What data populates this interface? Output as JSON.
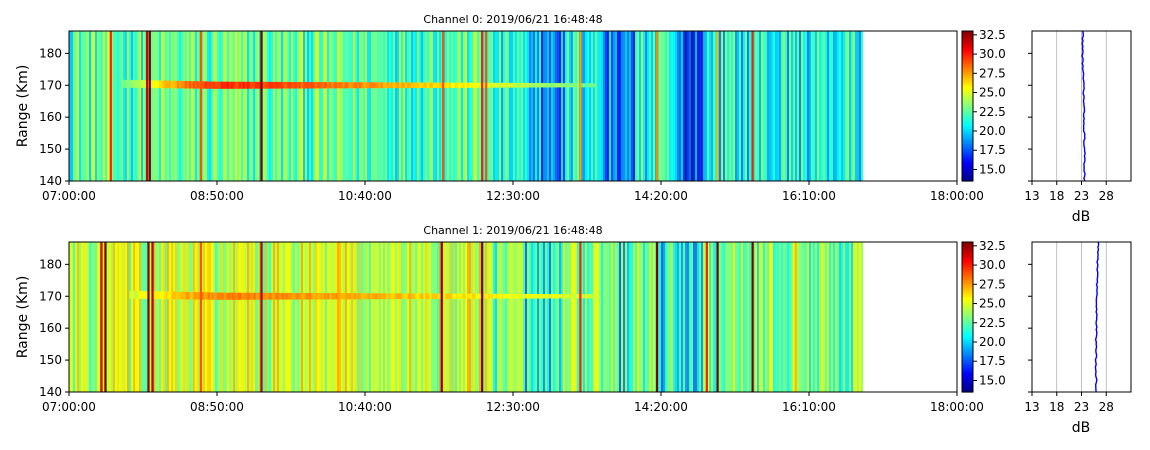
{
  "chart_data": [
    {
      "type": "heatmap",
      "title": "Channel 0: 2019/06/21 16:48:48",
      "ylabel": "Range (Km)",
      "xlim": [
        "07:00:00",
        "18:00:00"
      ],
      "ylim": [
        140,
        187
      ],
      "x_ticks": [
        "07:00:00",
        "08:50:00",
        "10:40:00",
        "12:30:00",
        "14:20:00",
        "16:10:00",
        "18:00:00"
      ],
      "y_ticks": [
        140,
        150,
        160,
        170,
        180
      ],
      "data_end": "16:50:00",
      "colorbar": {
        "colormap": "jet",
        "range": [
          13.5,
          33
        ],
        "ticks": [
          "15.0",
          "17.5",
          "20.0",
          "22.5",
          "25.0",
          "27.5",
          "30.0",
          "32.5"
        ]
      },
      "background_level": 22.5,
      "layer": {
        "range_km": 170,
        "start": "07:40:00",
        "end": "13:30:00",
        "peak_value": 30.5
      },
      "vertical_stripes": [
        {
          "time": "07:31:00",
          "value": 30
        },
        {
          "time": "07:58:00",
          "value": 31.5
        },
        {
          "time": "08:00:00",
          "value": 33
        },
        {
          "time": "08:38:00",
          "value": 29
        },
        {
          "time": "09:23:00",
          "value": 33
        },
        {
          "time": "11:38:00",
          "value": 29
        },
        {
          "time": "12:07:00",
          "value": 30
        },
        {
          "time": "12:10:00",
          "value": 29
        },
        {
          "time": "13:20:00",
          "value": 27.5
        },
        {
          "time": "14:17:00",
          "value": 28
        },
        {
          "time": "15:02:00",
          "value": 27
        },
        {
          "time": "15:28:00",
          "value": 30
        }
      ],
      "low_bands": [
        {
          "start": "12:36:00",
          "end": "13:10:00",
          "value": 17
        },
        {
          "start": "13:38:00",
          "end": "14:00:00",
          "value": 16.5
        },
        {
          "start": "14:30:00",
          "end": "14:52:00",
          "value": 16
        }
      ]
    },
    {
      "type": "line",
      "xlabel": "dB",
      "xlim": [
        13,
        33
      ],
      "x_ticks": [
        13,
        18,
        23,
        28
      ],
      "ylim": [
        140,
        187
      ],
      "grid": true,
      "series": [
        {
          "color": "#0000ff",
          "points": [
            [
              23.3,
              187
            ],
            [
              23.2,
              180
            ],
            [
              23.4,
              170
            ],
            [
              23.5,
              160
            ],
            [
              23.6,
              150
            ],
            [
              23.6,
              140
            ]
          ]
        }
      ]
    },
    {
      "type": "heatmap",
      "title": "Channel 1: 2019/06/21 16:48:48",
      "ylabel": "Range (Km)",
      "xlim": [
        "07:00:00",
        "18:00:00"
      ],
      "ylim": [
        140,
        187
      ],
      "x_ticks": [
        "07:00:00",
        "08:50:00",
        "10:40:00",
        "12:30:00",
        "14:20:00",
        "16:10:00",
        "18:00:00"
      ],
      "y_ticks": [
        140,
        150,
        160,
        170,
        180
      ],
      "data_end": "16:50:00",
      "colorbar": {
        "colormap": "jet",
        "range": [
          13.5,
          33
        ],
        "ticks": [
          "15.0",
          "17.5",
          "20.0",
          "22.5",
          "25.0",
          "27.5",
          "30.0",
          "32.5"
        ]
      },
      "background_level": 24.5,
      "layer": {
        "range_km": 170,
        "start": "07:45:00",
        "end": "13:30:00",
        "peak_value": 28.5
      },
      "vertical_stripes": [
        {
          "time": "07:24:00",
          "value": 31
        },
        {
          "time": "07:27:00",
          "value": 33
        },
        {
          "time": "07:59:00",
          "value": 33
        },
        {
          "time": "08:02:00",
          "value": 32
        },
        {
          "time": "08:38:00",
          "value": 29
        },
        {
          "time": "09:23:00",
          "value": 32
        },
        {
          "time": "11:37:00",
          "value": 33
        },
        {
          "time": "12:07:00",
          "value": 33
        },
        {
          "time": "13:20:00",
          "value": 30
        },
        {
          "time": "14:17:00",
          "value": 33
        },
        {
          "time": "14:54:00",
          "value": 30
        },
        {
          "time": "15:02:00",
          "value": 33
        },
        {
          "time": "15:28:00",
          "value": 33
        },
        {
          "time": "16:00:00",
          "value": 27
        }
      ],
      "low_bands": [
        {
          "start": "12:36:00",
          "end": "13:05:00",
          "value": 19.5
        },
        {
          "start": "13:45:00",
          "end": "14:00:00",
          "value": 19.5
        },
        {
          "start": "14:20:00",
          "end": "14:50:00",
          "value": 19
        }
      ]
    },
    {
      "type": "line",
      "xlabel": "dB",
      "xlim": [
        13,
        33
      ],
      "x_ticks": [
        13,
        18,
        23,
        28
      ],
      "ylim": [
        140,
        187
      ],
      "grid": true,
      "series": [
        {
          "color": "#0000ff",
          "points": [
            [
              26.4,
              187
            ],
            [
              26.2,
              180
            ],
            [
              26.1,
              170
            ],
            [
              26.0,
              160
            ],
            [
              25.9,
              150
            ],
            [
              26.0,
              140
            ]
          ]
        }
      ]
    }
  ]
}
